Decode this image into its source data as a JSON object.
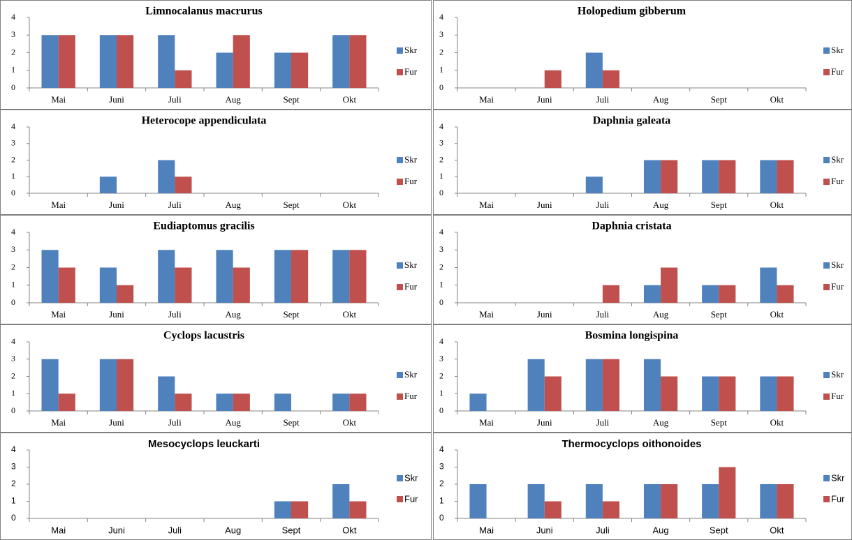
{
  "colors": {
    "skr": "#4F81BD",
    "fur": "#C0504D",
    "axis": "#868686",
    "border": "#7f7f7f"
  },
  "chart_data": [
    {
      "type": "bar",
      "title": "Limnocalanus macrurus",
      "categories": [
        "Mai",
        "Juni",
        "Juli",
        "Aug",
        "Sept",
        "Okt"
      ],
      "ylim": [
        0,
        4
      ],
      "yticks": [
        "0",
        "1",
        "2",
        "3",
        "4"
      ],
      "legend": "right",
      "series": [
        {
          "name": "Skr",
          "values": [
            3,
            3,
            3,
            2,
            2,
            3
          ]
        },
        {
          "name": "Fur",
          "values": [
            3,
            3,
            1,
            3,
            2,
            3
          ]
        }
      ]
    },
    {
      "type": "bar",
      "title": "Holopedium gibberum",
      "categories": [
        "Mai",
        "Juni",
        "Juli",
        "Aug",
        "Sept",
        "Okt"
      ],
      "ylim": [
        0,
        4
      ],
      "yticks": [
        "0",
        "1",
        "2",
        "3",
        "4"
      ],
      "legend": "right",
      "series": [
        {
          "name": "Skr",
          "values": [
            0,
            0,
            2,
            0,
            0,
            0
          ]
        },
        {
          "name": "Fur",
          "values": [
            0,
            1,
            1,
            0,
            0,
            0
          ]
        }
      ]
    },
    {
      "type": "bar",
      "title": "Heterocope appendiculata",
      "categories": [
        "Mai",
        "Juni",
        "Juli",
        "Aug",
        "Sept",
        "Okt"
      ],
      "ylim": [
        0,
        4
      ],
      "yticks": [
        "0",
        "1",
        "2",
        "3",
        "4"
      ],
      "legend": "right",
      "series": [
        {
          "name": "Skr",
          "values": [
            0,
            1,
            2,
            0,
            0,
            0
          ]
        },
        {
          "name": "Fur",
          "values": [
            0,
            0,
            1,
            0,
            0,
            0
          ]
        }
      ]
    },
    {
      "type": "bar",
      "title": "Daphnia galeata",
      "categories": [
        "Mai",
        "Juni",
        "Juli",
        "Aug",
        "Sept",
        "Okt"
      ],
      "ylim": [
        0,
        4
      ],
      "yticks": [
        "0",
        "1",
        "2",
        "3",
        "4"
      ],
      "legend": "right",
      "series": [
        {
          "name": "Skr",
          "values": [
            0,
            0,
            1,
            2,
            2,
            2
          ]
        },
        {
          "name": "Fur",
          "values": [
            0,
            0,
            0,
            2,
            2,
            2
          ]
        }
      ]
    },
    {
      "type": "bar",
      "title": "Eudiaptomus gracilis",
      "categories": [
        "Mai",
        "Juni",
        "Juli",
        "Aug",
        "Sept",
        "Okt"
      ],
      "ylim": [
        0,
        4
      ],
      "yticks": [
        "0",
        "1",
        "2",
        "3",
        "4"
      ],
      "legend": "right",
      "series": [
        {
          "name": "Skr",
          "values": [
            3,
            2,
            3,
            3,
            3,
            3
          ]
        },
        {
          "name": "Fur",
          "values": [
            2,
            1,
            2,
            2,
            3,
            3
          ]
        }
      ]
    },
    {
      "type": "bar",
      "title": "Daphnia cristata",
      "categories": [
        "Mai",
        "Juni",
        "Juli",
        "Aug",
        "Sept",
        "Okt"
      ],
      "ylim": [
        0,
        4
      ],
      "yticks": [
        "0",
        "1",
        "2",
        "3",
        "4"
      ],
      "legend": "right",
      "series": [
        {
          "name": "Skr",
          "values": [
            0,
            0,
            0,
            1,
            1,
            2
          ]
        },
        {
          "name": "Fur",
          "values": [
            0,
            0,
            1,
            2,
            1,
            1
          ]
        }
      ]
    },
    {
      "type": "bar",
      "title": "Cyclops lacustris",
      "categories": [
        "Mai",
        "Juni",
        "Juli",
        "Aug",
        "Sept",
        "Okt"
      ],
      "ylim": [
        0,
        4
      ],
      "yticks": [
        "0",
        "1",
        "2",
        "3",
        "4"
      ],
      "legend": "right",
      "series": [
        {
          "name": "Skr",
          "values": [
            3,
            3,
            2,
            1,
            1,
            1
          ]
        },
        {
          "name": "Fur",
          "values": [
            1,
            3,
            1,
            1,
            0,
            1
          ]
        }
      ]
    },
    {
      "type": "bar",
      "title": "Bosmina longispina",
      "categories": [
        "Mai",
        "Juni",
        "Juli",
        "Aug",
        "Sept",
        "Okt"
      ],
      "ylim": [
        0,
        4
      ],
      "yticks": [
        "0",
        "1",
        "2",
        "3",
        "4"
      ],
      "legend": "right",
      "series": [
        {
          "name": "Skr",
          "values": [
            1,
            3,
            3,
            3,
            2,
            2
          ]
        },
        {
          "name": "Fur",
          "values": [
            0,
            2,
            3,
            2,
            2,
            2
          ]
        }
      ]
    },
    {
      "type": "bar",
      "title": "Mesocyclops leuckarti",
      "categories": [
        "Mai",
        "Juni",
        "Juli",
        "Aug",
        "Sept",
        "Okt"
      ],
      "ylim": [
        0,
        4
      ],
      "yticks": [
        "0",
        "1",
        "2",
        "3",
        "4"
      ],
      "legend": "right",
      "series": [
        {
          "name": "Skr",
          "values": [
            0,
            0,
            0,
            0,
            1,
            2
          ]
        },
        {
          "name": "Fur",
          "values": [
            0,
            0,
            0,
            0,
            1,
            1
          ]
        }
      ]
    },
    {
      "type": "bar",
      "title": "Thermocyclops oithonoides",
      "categories": [
        "Mai",
        "Juni",
        "Juli",
        "Aug",
        "Sept",
        "Okt"
      ],
      "ylim": [
        0,
        4
      ],
      "yticks": [
        "0",
        "1",
        "2",
        "3",
        "4"
      ],
      "legend": "right",
      "series": [
        {
          "name": "Skr",
          "values": [
            2,
            2,
            2,
            2,
            2,
            2
          ]
        },
        {
          "name": "Fur",
          "values": [
            0,
            1,
            1,
            2,
            3,
            2
          ]
        }
      ]
    }
  ]
}
